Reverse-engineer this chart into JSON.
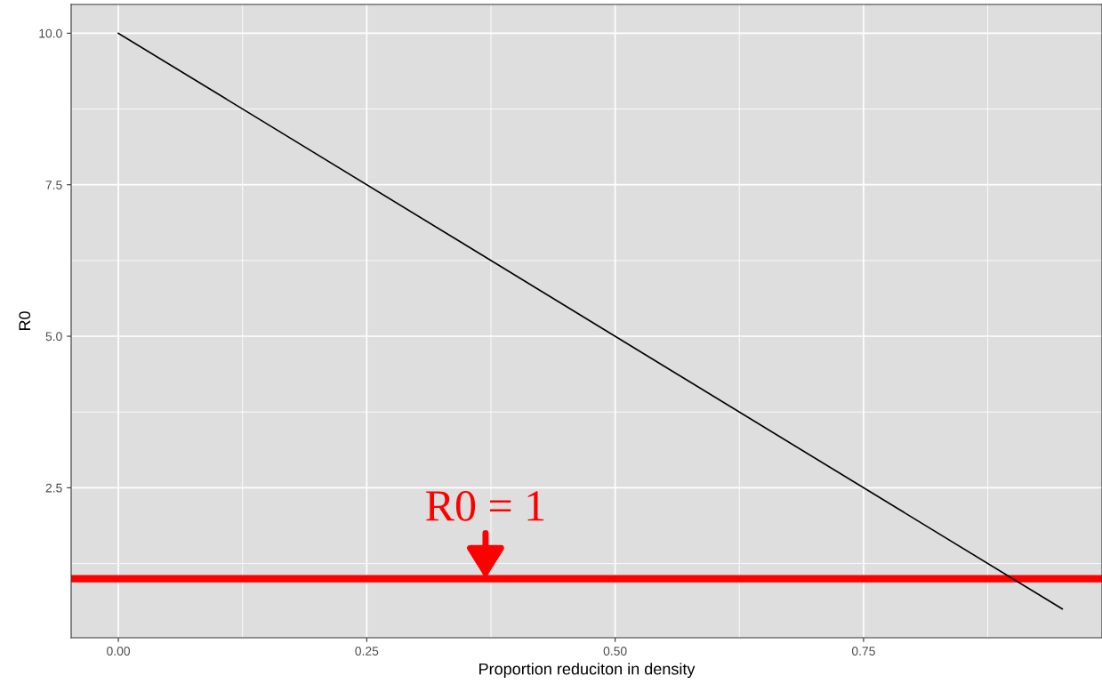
{
  "chart_data": {
    "type": "line",
    "xlabel": "Proportion reduciton in density",
    "ylabel": "R0",
    "x": [
      0,
      0.95
    ],
    "series": [
      {
        "color": "#000000",
        "values": [
          10,
          0.5
        ]
      }
    ],
    "xlim": [
      -0.0475,
      0.99
    ],
    "ylim": [
      0.025,
      10.475
    ],
    "xticks": [
      {
        "value": 0,
        "label": "0.00"
      },
      {
        "value": 0.25,
        "label": "0.25"
      },
      {
        "value": 0.5,
        "label": "0.50"
      },
      {
        "value": 0.75,
        "label": "0.75"
      }
    ],
    "yticks": [
      {
        "value": 2.5,
        "label": "2.5"
      },
      {
        "value": 5,
        "label": "5.0"
      },
      {
        "value": 7.5,
        "label": "7.5"
      },
      {
        "value": 10,
        "label": "10.0"
      }
    ],
    "grid": true,
    "ref_lines": [
      {
        "axis": "y",
        "value": 1,
        "color": "#ff0000",
        "label": "R0 = 1"
      }
    ]
  }
}
